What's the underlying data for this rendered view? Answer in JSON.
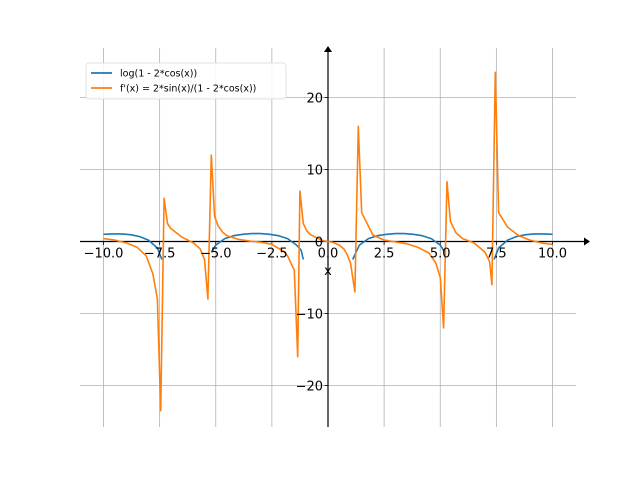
{
  "chart_data": {
    "type": "line",
    "title": "",
    "xlabel": "x",
    "ylabel": "",
    "xlim": [
      -10,
      10
    ],
    "ylim": [
      -25,
      26
    ],
    "grid": true,
    "legend_position": "top-left",
    "x_ticks": [
      -10.0,
      -7.5,
      -5.0,
      -2.5,
      0.0,
      2.5,
      5.0,
      7.5,
      10.0
    ],
    "x_tick_labels": [
      "−10.0",
      "−7.5",
      "−5.0",
      "−2.5",
      "0.0",
      "2.5",
      "5.0",
      "7.5",
      "10.0"
    ],
    "y_ticks": [
      -20,
      -10,
      0,
      10,
      20
    ],
    "y_tick_labels": [
      "−20",
      "−10",
      "0",
      "10",
      "20"
    ],
    "series": [
      {
        "name": "log(1 - 2*cos(x))",
        "color": "#1f77b4",
        "segments": [
          {
            "x": [
              -10.0,
              -9.6,
              -9.2,
              -8.8,
              -8.4,
              -8.0,
              -7.6,
              -7.4
            ],
            "y": [
              1.0,
              1.05,
              1.05,
              0.95,
              0.7,
              0.2,
              -0.9,
              -2.5
            ]
          },
          {
            "x": [
              -5.2,
              -5.0,
              -4.6,
              -4.2,
              -3.8,
              -3.4,
              -3.0,
              -2.6,
              -2.2,
              -1.8,
              -1.4,
              -1.2,
              -1.1
            ],
            "y": [
              -1.5,
              -0.5,
              0.4,
              0.8,
              1.0,
              1.1,
              1.1,
              1.0,
              0.8,
              0.4,
              -0.5,
              -1.2,
              -2.5
            ]
          },
          {
            "x": [
              1.1,
              1.4,
              1.8,
              2.2,
              2.6,
              3.0,
              3.4,
              3.8,
              4.2,
              4.6,
              5.0,
              5.2
            ],
            "y": [
              -2.5,
              -0.5,
              0.4,
              0.8,
              1.0,
              1.1,
              1.1,
              1.0,
              0.8,
              0.4,
              -0.5,
              -1.5
            ]
          },
          {
            "x": [
              7.4,
              7.6,
              8.0,
              8.4,
              8.8,
              9.2,
              9.6,
              10.0
            ],
            "y": [
              -2.5,
              -0.9,
              0.2,
              0.7,
              0.95,
              1.05,
              1.05,
              1.0
            ]
          }
        ]
      },
      {
        "name": "f'(x) = 2*sin(x)/(1 - 2*cos(x))",
        "color": "#ff7f0e",
        "segments": [
          {
            "x": [
              -10.0,
              -9.5,
              -9.0,
              -8.5,
              -8.1,
              -7.8,
              -7.6,
              -7.45,
              -7.3,
              -7.15,
              -7.0,
              -6.5,
              -6.0,
              -5.7,
              -5.5,
              -5.35,
              -5.2,
              -5.05,
              -4.9,
              -4.7,
              -4.5,
              -4.0,
              -3.5,
              -3.0,
              -2.5,
              -2.0,
              -1.8,
              -1.5,
              -1.35,
              -1.25,
              -1.1,
              -0.95,
              -0.8,
              -0.5,
              -0.2,
              0.0,
              0.2,
              0.5,
              0.7,
              0.85,
              1.0,
              1.2,
              1.35,
              1.5,
              2.0,
              2.5,
              3.0,
              3.5,
              4.0,
              4.5,
              4.8,
              5.0,
              5.15,
              5.3,
              5.45,
              5.7,
              6.0,
              6.5,
              7.0,
              7.2,
              7.3,
              7.45,
              7.6,
              8.0,
              8.5,
              9.0,
              9.5,
              10.0
            ],
            "y": [
              0.4,
              0.2,
              -0.2,
              -0.8,
              -2.0,
              -4.5,
              -8.0,
              -23.5,
              6.0,
              2.5,
              1.8,
              0.6,
              -0.2,
              -1.0,
              -2.5,
              -8.0,
              12.0,
              3.5,
              2.2,
              1.3,
              0.8,
              0.3,
              0.05,
              -0.1,
              -0.4,
              -1.3,
              -2.0,
              -4.0,
              -16.0,
              7.0,
              2.5,
              1.5,
              1.0,
              0.5,
              0.1,
              0.0,
              -0.1,
              -0.5,
              -1.0,
              -1.8,
              -3.0,
              -7.0,
              16.0,
              4.0,
              0.9,
              0.2,
              -0.05,
              -0.3,
              -0.8,
              -1.6,
              -3.0,
              -5.0,
              -12.0,
              8.3,
              2.8,
              1.2,
              0.4,
              -0.2,
              -1.5,
              -2.8,
              -6.0,
              23.5,
              4.0,
              2.0,
              0.8,
              0.2,
              -0.2,
              -0.4
            ]
          }
        ]
      }
    ]
  }
}
